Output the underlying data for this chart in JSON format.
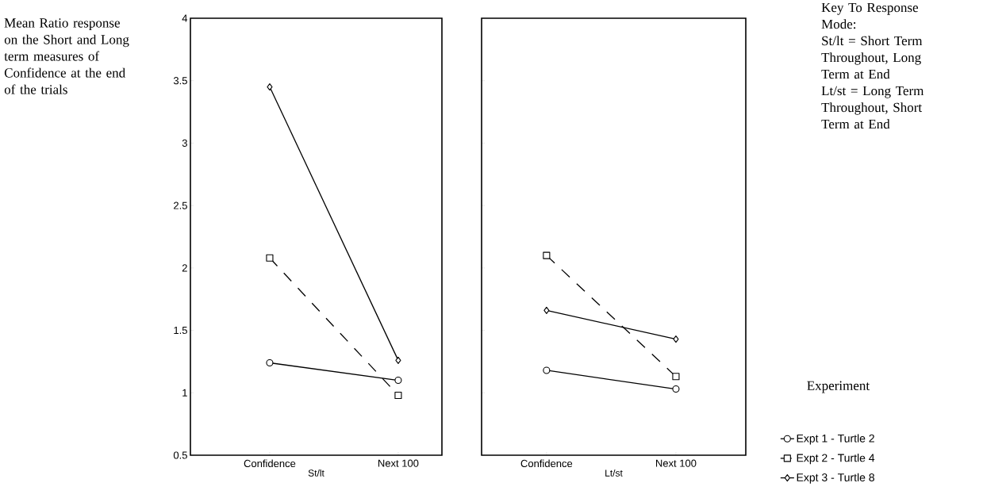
{
  "chart_data": [
    {
      "type": "line",
      "title": "Mean Ratio response on the Short and Long term measures of Confidence at the end of the trials",
      "xlabel": "St/lt",
      "categories": [
        "Confidence",
        "Next 100"
      ],
      "ylim": [
        0.5,
        4
      ],
      "yticks": [
        0.5,
        1,
        1.5,
        2,
        2.5,
        3,
        3.5,
        4
      ],
      "legend": false,
      "series": [
        {
          "color": "#000000",
          "marker": "circle",
          "line_style": "solid",
          "values": [
            1.24,
            1.1
          ]
        },
        {
          "color": "#000000",
          "marker": "square",
          "line_style": "dashed",
          "values": [
            2.08,
            0.98
          ]
        },
        {
          "color": "#000000",
          "marker": "diamond",
          "line_style": "solid",
          "values": [
            3.45,
            1.26
          ]
        }
      ]
    },
    {
      "type": "line",
      "xlabel": "Lt/st",
      "categories": [
        "Confidence",
        "Next 100"
      ],
      "ylim": [
        0.5,
        4
      ],
      "yticks": [
        0.5,
        1,
        1.5,
        2,
        2.5,
        3,
        3.5,
        4
      ],
      "tick_labels": "x",
      "legend": "right",
      "legend_title": "Experiment",
      "annotations": [
        "Key To Response Mode:",
        "St/lt = Short Term Throughout, Long Term at End",
        "Lt/st = Long Term Throughout, Short Term at End"
      ],
      "series": [
        {
          "name": "Expt 1 - Turtle 2",
          "color": "#000000",
          "marker": "circle",
          "line_style": "solid",
          "values": [
            1.18,
            1.03
          ]
        },
        {
          "name": "Expt 2 - Turtle 4",
          "color": "#000000",
          "marker": "square",
          "line_style": "dashed",
          "values": [
            2.1,
            1.13
          ]
        },
        {
          "name": "Expt 3 - Turtle 8",
          "color": "#000000",
          "marker": "diamond",
          "line_style": "solid",
          "values": [
            1.66,
            1.43
          ]
        }
      ]
    }
  ]
}
